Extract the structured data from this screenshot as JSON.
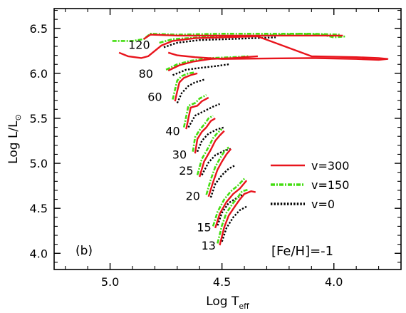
{
  "chart_data": {
    "type": "line",
    "panel_label": "(b)",
    "xlabel": {
      "main": "Log T",
      "sub": "eff"
    },
    "ylabel": {
      "main": "Log L/L",
      "sub": "⊙"
    },
    "xlim": [
      5.25,
      3.7
    ],
    "ylim": [
      3.82,
      6.72
    ],
    "x_reversed": true,
    "grid": false,
    "x_ticks": [
      {
        "value": 5.0,
        "label": "5.0"
      },
      {
        "value": 4.5,
        "label": "4.5"
      },
      {
        "value": 4.0,
        "label": "4.0"
      }
    ],
    "y_ticks": [
      {
        "value": 4.0,
        "label": "4.0"
      },
      {
        "value": 4.5,
        "label": "4.5"
      },
      {
        "value": 5.0,
        "label": "5.0"
      },
      {
        "value": 5.5,
        "label": "5.5"
      },
      {
        "value": 6.0,
        "label": "6.0"
      },
      {
        "value": 6.5,
        "label": "6.5"
      }
    ],
    "legend_position": "center-right",
    "annotation": "[Fe/H]=-1",
    "mass_labels": [
      {
        "text": "120",
        "x": 4.87,
        "y": 6.32
      },
      {
        "text": "80",
        "x": 4.84,
        "y": 6.0
      },
      {
        "text": "60",
        "x": 4.8,
        "y": 5.74
      },
      {
        "text": "40",
        "x": 4.72,
        "y": 5.36
      },
      {
        "text": "30",
        "x": 4.69,
        "y": 5.1
      },
      {
        "text": "25",
        "x": 4.66,
        "y": 4.92
      },
      {
        "text": "20",
        "x": 4.63,
        "y": 4.64
      },
      {
        "text": "15",
        "x": 4.58,
        "y": 4.29
      },
      {
        "text": "13",
        "x": 4.56,
        "y": 4.09
      }
    ],
    "series": [
      {
        "name": "v=300",
        "color": "#e8141c",
        "style": "solid",
        "tracks": [
          [
            [
              4.96,
              6.23
            ],
            [
              4.92,
              6.19
            ],
            [
              4.86,
              6.17
            ],
            [
              4.83,
              6.19
            ],
            [
              4.8,
              6.25
            ],
            [
              4.77,
              6.31
            ],
            [
              4.72,
              6.36
            ],
            [
              4.62,
              6.39
            ],
            [
              4.5,
              6.4
            ],
            [
              4.36,
              6.41
            ],
            [
              4.34,
              6.41
            ],
            [
              4.1,
              6.19
            ],
            [
              3.9,
              6.18
            ],
            [
              3.8,
              6.17
            ],
            [
              3.76,
              6.16
            ],
            [
              3.8,
              6.15
            ],
            [
              3.9,
              6.16
            ],
            [
              4.1,
              6.17
            ],
            [
              4.5,
              6.16
            ],
            [
              4.62,
              6.18
            ],
            [
              4.7,
              6.2
            ],
            [
              4.74,
              6.23
            ]
          ],
          [
            [
              4.85,
              6.38
            ],
            [
              4.82,
              6.43
            ],
            [
              4.7,
              6.42
            ],
            [
              4.5,
              6.42
            ],
            [
              4.3,
              6.42
            ],
            [
              4.1,
              6.42
            ],
            [
              3.96,
              6.42
            ]
          ],
          [
            [
              4.74,
              6.03
            ],
            [
              4.69,
              6.09
            ],
            [
              4.63,
              6.13
            ],
            [
              4.55,
              6.16
            ],
            [
              4.45,
              6.17
            ],
            [
              4.4,
              6.18
            ],
            [
              4.34,
              6.19
            ]
          ],
          [
            [
              4.71,
              5.69
            ],
            [
              4.7,
              5.8
            ],
            [
              4.69,
              5.9
            ],
            [
              4.67,
              5.95
            ],
            [
              4.64,
              5.98
            ],
            [
              4.61,
              6.0
            ]
          ],
          [
            [
              4.66,
              5.38
            ],
            [
              4.65,
              5.5
            ],
            [
              4.64,
              5.62
            ],
            [
              4.61,
              5.64
            ],
            [
              4.59,
              5.69
            ],
            [
              4.56,
              5.73
            ]
          ],
          [
            [
              4.62,
              5.11
            ],
            [
              4.61,
              5.27
            ],
            [
              4.59,
              5.35
            ],
            [
              4.57,
              5.4
            ],
            [
              4.55,
              5.47
            ],
            [
              4.53,
              5.5
            ]
          ],
          [
            [
              4.6,
              4.85
            ],
            [
              4.58,
              5.02
            ],
            [
              4.55,
              5.15
            ],
            [
              4.53,
              5.25
            ],
            [
              4.51,
              5.31
            ],
            [
              4.49,
              5.36
            ]
          ],
          [
            [
              4.56,
              4.63
            ],
            [
              4.54,
              4.79
            ],
            [
              4.52,
              4.93
            ],
            [
              4.5,
              5.02
            ],
            [
              4.48,
              5.1
            ],
            [
              4.46,
              5.16
            ]
          ],
          [
            [
              4.53,
              4.28
            ],
            [
              4.51,
              4.44
            ],
            [
              4.48,
              4.57
            ],
            [
              4.45,
              4.66
            ],
            [
              4.42,
              4.72
            ],
            [
              4.39,
              4.81
            ]
          ],
          [
            [
              4.51,
              4.09
            ],
            [
              4.49,
              4.29
            ],
            [
              4.47,
              4.42
            ],
            [
              4.44,
              4.53
            ],
            [
              4.42,
              4.6
            ],
            [
              4.4,
              4.66
            ],
            [
              4.37,
              4.69
            ],
            [
              4.35,
              4.68
            ]
          ]
        ]
      },
      {
        "name": "v=150",
        "color": "#44dd11",
        "style": "dashdot",
        "tracks": [
          [
            [
              4.99,
              6.36
            ],
            [
              4.9,
              6.36
            ],
            [
              4.85,
              6.38
            ],
            [
              4.82,
              6.44
            ],
            [
              4.7,
              6.43
            ],
            [
              4.5,
              6.44
            ],
            [
              4.3,
              6.44
            ],
            [
              4.1,
              6.44
            ],
            [
              3.97,
              6.43
            ]
          ],
          [
            [
              4.78,
              6.34
            ],
            [
              4.72,
              6.38
            ],
            [
              4.6,
              6.4
            ],
            [
              4.45,
              6.41
            ],
            [
              4.3,
              6.42
            ],
            [
              4.15,
              6.44
            ],
            [
              4.05,
              6.43
            ],
            [
              4.0,
              6.4
            ],
            [
              3.95,
              6.41
            ]
          ],
          [
            [
              4.75,
              6.04
            ],
            [
              4.7,
              6.1
            ],
            [
              4.64,
              6.14
            ],
            [
              4.55,
              6.17
            ],
            [
              4.45,
              6.18
            ],
            [
              4.38,
              6.19
            ]
          ],
          [
            [
              4.72,
              5.71
            ],
            [
              4.71,
              5.82
            ],
            [
              4.7,
              5.92
            ],
            [
              4.68,
              5.97
            ],
            [
              4.65,
              6.0
            ],
            [
              4.62,
              6.01
            ]
          ],
          [
            [
              4.67,
              5.4
            ],
            [
              4.66,
              5.52
            ],
            [
              4.65,
              5.64
            ],
            [
              4.62,
              5.67
            ],
            [
              4.6,
              5.72
            ],
            [
              4.57,
              5.76
            ]
          ],
          [
            [
              4.63,
              5.13
            ],
            [
              4.62,
              5.29
            ],
            [
              4.6,
              5.37
            ],
            [
              4.58,
              5.43
            ],
            [
              4.56,
              5.5
            ],
            [
              4.54,
              5.53
            ]
          ],
          [
            [
              4.61,
              4.87
            ],
            [
              4.59,
              5.05
            ],
            [
              4.56,
              5.18
            ],
            [
              4.54,
              5.28
            ],
            [
              4.52,
              5.34
            ],
            [
              4.5,
              5.38
            ]
          ],
          [
            [
              4.57,
              4.65
            ],
            [
              4.55,
              4.82
            ],
            [
              4.53,
              4.96
            ],
            [
              4.51,
              5.05
            ],
            [
              4.49,
              5.13
            ],
            [
              4.47,
              5.18
            ]
          ],
          [
            [
              4.54,
              4.3
            ],
            [
              4.52,
              4.46
            ],
            [
              4.49,
              4.6
            ],
            [
              4.46,
              4.69
            ],
            [
              4.43,
              4.75
            ],
            [
              4.4,
              4.83
            ]
          ],
          [
            [
              4.52,
              4.11
            ],
            [
              4.5,
              4.31
            ],
            [
              4.48,
              4.45
            ],
            [
              4.45,
              4.56
            ],
            [
              4.43,
              4.62
            ],
            [
              4.41,
              4.69
            ],
            [
              4.38,
              4.71
            ]
          ]
        ]
      },
      {
        "name": "v=0",
        "color": "#000000",
        "style": "dotted",
        "tracks": [
          [
            [
              4.76,
              6.29
            ],
            [
              4.7,
              6.34
            ],
            [
              4.6,
              6.37
            ],
            [
              4.48,
              6.38
            ],
            [
              4.36,
              6.39
            ],
            [
              4.26,
              6.4
            ]
          ],
          [
            [
              4.72,
              5.98
            ],
            [
              4.66,
              6.04
            ],
            [
              4.6,
              6.06
            ],
            [
              4.53,
              6.08
            ],
            [
              4.47,
              6.1
            ]
          ],
          [
            [
              4.7,
              5.67
            ],
            [
              4.68,
              5.78
            ],
            [
              4.65,
              5.86
            ],
            [
              4.62,
              5.9
            ],
            [
              4.58,
              5.93
            ]
          ],
          [
            [
              4.65,
              5.4
            ],
            [
              4.62,
              5.53
            ],
            [
              4.58,
              5.58
            ],
            [
              4.54,
              5.63
            ],
            [
              4.51,
              5.66
            ]
          ],
          [
            [
              4.61,
              5.13
            ],
            [
              4.59,
              5.25
            ],
            [
              4.56,
              5.33
            ],
            [
              4.52,
              5.38
            ],
            [
              4.49,
              5.4
            ]
          ],
          [
            [
              4.59,
              4.87
            ],
            [
              4.56,
              5.01
            ],
            [
              4.53,
              5.09
            ],
            [
              4.49,
              5.14
            ],
            [
              4.46,
              5.16
            ]
          ],
          [
            [
              4.55,
              4.62
            ],
            [
              4.53,
              4.77
            ],
            [
              4.5,
              4.87
            ],
            [
              4.47,
              4.94
            ],
            [
              4.44,
              4.98
            ]
          ],
          [
            [
              4.52,
              4.31
            ],
            [
              4.5,
              4.45
            ],
            [
              4.47,
              4.56
            ],
            [
              4.43,
              4.62
            ],
            [
              4.4,
              4.66
            ]
          ],
          [
            [
              4.5,
              4.13
            ],
            [
              4.48,
              4.28
            ],
            [
              4.45,
              4.4
            ],
            [
              4.42,
              4.48
            ],
            [
              4.39,
              4.52
            ]
          ]
        ]
      }
    ]
  }
}
